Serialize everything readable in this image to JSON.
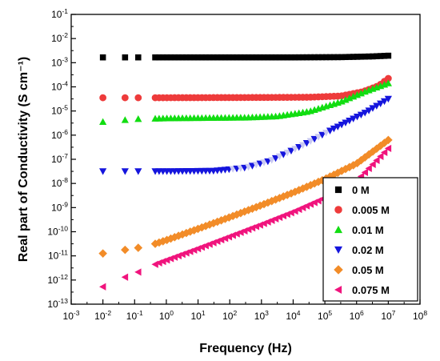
{
  "chart_data": {
    "type": "scatter",
    "xlabel": "Frequency (Hz)",
    "ylabel": "Real part of Conductivity (S cm⁻¹)",
    "x_scale": "log",
    "y_scale": "log",
    "xlim": [
      0.001,
      100000000
    ],
    "ylim": [
      1e-13,
      0.1
    ],
    "x_tick_exponents": [
      -3,
      -2,
      -1,
      0,
      1,
      2,
      3,
      4,
      5,
      6,
      7,
      8
    ],
    "y_tick_exponents": [
      -13,
      -12,
      -11,
      -10,
      -9,
      -8,
      -7,
      -6,
      -5,
      -4,
      -3,
      -2,
      -1
    ],
    "tick_base": "10",
    "legend_position": "lower-right",
    "frequency_sweep": {
      "log10_start": -0.35,
      "log10_end": 7,
      "points": 61,
      "extra_low_frequencies": [
        0.01,
        0.05,
        0.13
      ]
    },
    "series": [
      {
        "name": "0 M",
        "marker": "square",
        "color": "#000000",
        "log10_sigma_vs_log10_f": [
          [
            -2,
            -2.78
          ],
          [
            0,
            -2.78
          ],
          [
            2,
            -2.78
          ],
          [
            4,
            -2.78
          ],
          [
            5.5,
            -2.77
          ],
          [
            6.5,
            -2.74
          ],
          [
            7,
            -2.71
          ]
        ]
      },
      {
        "name": "0.005 M",
        "marker": "circle",
        "color": "#EE3B3B",
        "log10_sigma_vs_log10_f": [
          [
            -2,
            -4.45
          ],
          [
            0,
            -4.45
          ],
          [
            3,
            -4.44
          ],
          [
            4.5,
            -4.43
          ],
          [
            5.5,
            -4.38
          ],
          [
            6.2,
            -4.2
          ],
          [
            6.7,
            -3.95
          ],
          [
            7,
            -3.65
          ]
        ]
      },
      {
        "name": "0.01 M",
        "marker": "triangle-up",
        "color": "#11DD11",
        "log10_sigma_vs_log10_f": [
          [
            -2,
            -5.45
          ],
          [
            -1.3,
            -5.37
          ],
          [
            -0.9,
            -5.33
          ],
          [
            0,
            -5.3
          ],
          [
            2.5,
            -5.27
          ],
          [
            3.5,
            -5.22
          ],
          [
            4.5,
            -5.02
          ],
          [
            5.5,
            -4.62
          ],
          [
            6.3,
            -4.18
          ],
          [
            7,
            -3.85
          ]
        ]
      },
      {
        "name": "0.02 M",
        "marker": "triangle-down",
        "color": "#1515DD",
        "secondary_color": "#C9C9F2",
        "log10_sigma_vs_log10_f": [
          [
            -2,
            -7.5
          ],
          [
            0,
            -7.5
          ],
          [
            1.5,
            -7.48
          ],
          [
            2.5,
            -7.35
          ],
          [
            3.3,
            -7.05
          ],
          [
            4.3,
            -6.42
          ],
          [
            5.3,
            -5.72
          ],
          [
            6.3,
            -5.05
          ],
          [
            7,
            -4.5
          ]
        ]
      },
      {
        "name": "0.05 M",
        "marker": "diamond",
        "color": "#F28C28",
        "log10_sigma_vs_log10_f": [
          [
            -2,
            -10.9
          ],
          [
            -1.3,
            -10.75
          ],
          [
            -0.9,
            -10.67
          ],
          [
            -0.35,
            -10.5
          ],
          [
            0,
            -10.35
          ],
          [
            1,
            -9.88
          ],
          [
            2,
            -9.4
          ],
          [
            3,
            -8.9
          ],
          [
            4,
            -8.38
          ],
          [
            5,
            -7.82
          ],
          [
            6,
            -7.18
          ],
          [
            7,
            -6.2
          ]
        ]
      },
      {
        "name": "0.075 M",
        "marker": "triangle-left",
        "color": "#F0147D",
        "log10_sigma_vs_log10_f": [
          [
            -2,
            -12.28
          ],
          [
            -1.3,
            -11.88
          ],
          [
            -0.9,
            -11.68
          ],
          [
            -0.35,
            -11.35
          ],
          [
            0,
            -11.18
          ],
          [
            1,
            -10.7
          ],
          [
            2,
            -10.2
          ],
          [
            3,
            -9.7
          ],
          [
            4,
            -9.18
          ],
          [
            5,
            -8.6
          ],
          [
            6,
            -7.9
          ],
          [
            7,
            -6.55
          ]
        ]
      }
    ]
  }
}
